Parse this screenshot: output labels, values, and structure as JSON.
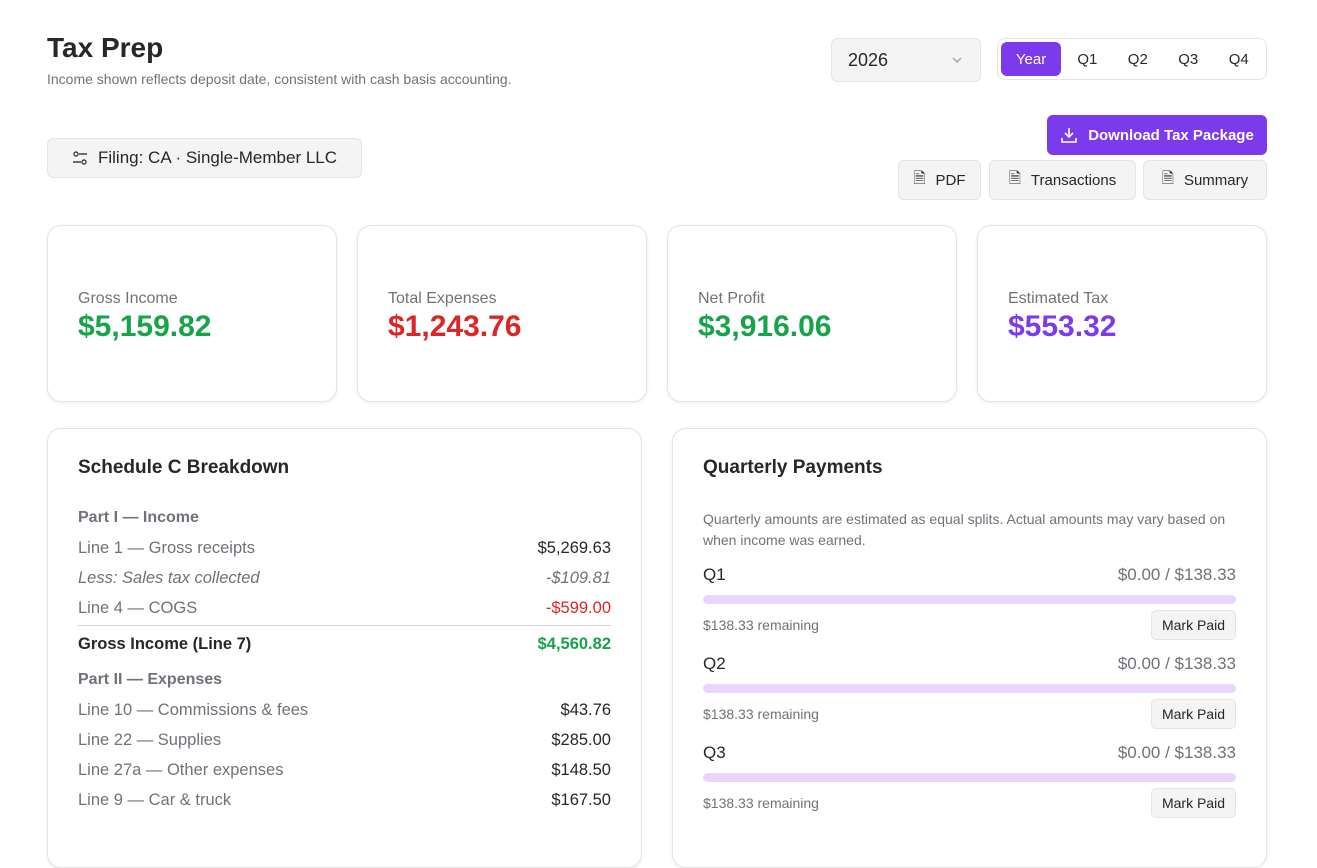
{
  "header": {
    "title": "Tax Prep",
    "subtitle": "Income shown reflects deposit date, consistent with cash basis accounting."
  },
  "year_select": {
    "value": "2026"
  },
  "period_tabs": [
    {
      "label": "Year",
      "active": true
    },
    {
      "label": "Q1"
    },
    {
      "label": "Q2"
    },
    {
      "label": "Q3"
    },
    {
      "label": "Q4"
    }
  ],
  "filing": {
    "label": "Filing: CA · Single-Member LLC",
    "icon": "sliders-icon"
  },
  "actions": {
    "download": "Download Tax Package",
    "pdf": "PDF",
    "transactions": "Transactions",
    "summary": "Summary"
  },
  "colors": {
    "accent": "#7c3aed",
    "positive": "#16a34a",
    "negative": "#dc2626"
  },
  "stats": [
    {
      "label": "Gross Income",
      "value": "$5,159.82",
      "color": "#16a34a"
    },
    {
      "label": "Total Expenses",
      "value": "$1,243.76",
      "color": "#dc2626"
    },
    {
      "label": "Net Profit",
      "value": "$3,916.06",
      "color": "#16a34a"
    },
    {
      "label": "Estimated Tax",
      "value": "$553.32",
      "color": "#7c3aed"
    }
  ],
  "schedule_c": {
    "title": "Schedule C Breakdown",
    "part1": "Part I — Income",
    "income": [
      {
        "label": "Line 1 — Gross receipts",
        "amount": "$5,269.63"
      },
      {
        "label": "Less: Sales tax collected",
        "amount": "-$109.81"
      },
      {
        "label": "Line 4 — COGS",
        "amount": "-$599.00"
      }
    ],
    "gross": {
      "label": "Gross Income (Line 7)",
      "amount": "$4,560.82"
    },
    "part2": "Part II — Expenses",
    "expenses": [
      {
        "label": "Line 10 — Commissions & fees",
        "amount": "$43.76"
      },
      {
        "label": "Line 22 — Supplies",
        "amount": "$285.00"
      },
      {
        "label": "Line 27a — Other expenses",
        "amount": "$148.50"
      },
      {
        "label": "Line 9 — Car & truck",
        "amount": "$167.50"
      }
    ]
  },
  "quarterly": {
    "title": "Quarterly Payments",
    "note": "Quarterly amounts are estimated as equal splits. Actual amounts may vary based on when income was earned.",
    "items": [
      {
        "q": "Q1",
        "amount": "$0.00 / $138.33",
        "remaining": "$138.33 remaining",
        "paid_fraction": 0,
        "button": "Mark Paid"
      },
      {
        "q": "Q2",
        "amount": "$0.00 / $138.33",
        "remaining": "$138.33 remaining",
        "paid_fraction": 0,
        "button": "Mark Paid"
      },
      {
        "q": "Q3",
        "amount": "$0.00 / $138.33",
        "remaining": "$138.33 remaining",
        "paid_fraction": 0,
        "button": "Mark Paid"
      }
    ]
  }
}
